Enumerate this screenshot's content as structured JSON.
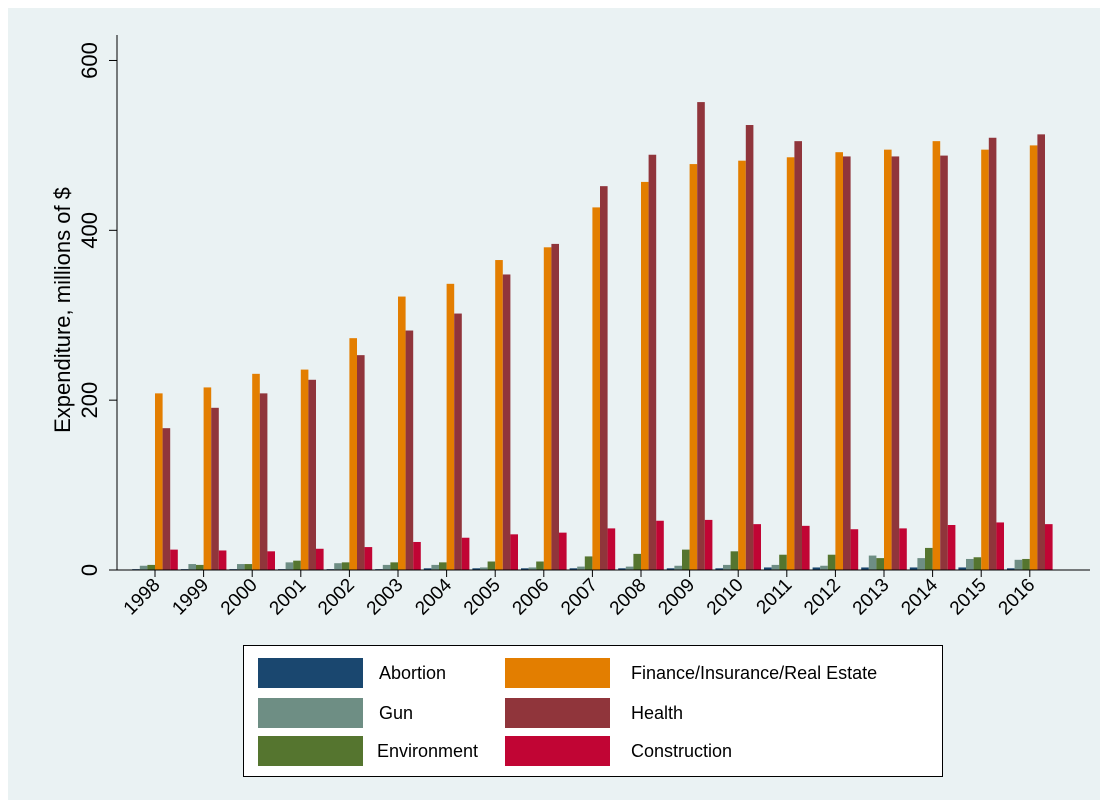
{
  "chart_data": {
    "type": "bar",
    "ylabel": "Expenditure, millions of $",
    "xlabel": "",
    "ylim": [
      0,
      630
    ],
    "yticks": [
      0,
      200,
      400,
      600
    ],
    "grid": true,
    "legend_position": "bottom",
    "categories": [
      "1998",
      "1999",
      "2000",
      "2001",
      "2002",
      "2003",
      "2004",
      "2005",
      "2006",
      "2007",
      "2008",
      "2009",
      "2010",
      "2011",
      "2012",
      "2013",
      "2014",
      "2015",
      "2016"
    ],
    "series": [
      {
        "name": "Abortion",
        "color": "#1a476f",
        "values": [
          1,
          1,
          1,
          1,
          1,
          1,
          2,
          2,
          2,
          2,
          2,
          2,
          2,
          3,
          3,
          3,
          3,
          3,
          2
        ]
      },
      {
        "name": "Gun",
        "color": "#6e8e84",
        "values": [
          5,
          7,
          7,
          9,
          8,
          6,
          6,
          3,
          3,
          4,
          4,
          5,
          6,
          6,
          5,
          17,
          14,
          13,
          12
        ]
      },
      {
        "name": "Environment",
        "color": "#55752f",
        "values": [
          6,
          6,
          7,
          11,
          9,
          9,
          9,
          10,
          10,
          16,
          19,
          24,
          22,
          18,
          18,
          14,
          26,
          15,
          13
        ]
      },
      {
        "name": "Finance/Insurance/Real Estate",
        "color": "#e37e00",
        "values": [
          208,
          215,
          231,
          236,
          273,
          322,
          337,
          365,
          380,
          427,
          457,
          478,
          482,
          486,
          492,
          495,
          505,
          495,
          500
        ]
      },
      {
        "name": "Health",
        "color": "#90353b",
        "values": [
          167,
          191,
          208,
          224,
          253,
          282,
          302,
          348,
          384,
          452,
          489,
          551,
          524,
          505,
          487,
          487,
          488,
          509,
          513
        ]
      },
      {
        "name": "Construction",
        "color": "#c10534",
        "values": [
          24,
          23,
          22,
          25,
          27,
          33,
          38,
          42,
          44,
          49,
          58,
          59,
          54,
          52,
          48,
          49,
          53,
          56,
          54
        ]
      }
    ]
  }
}
